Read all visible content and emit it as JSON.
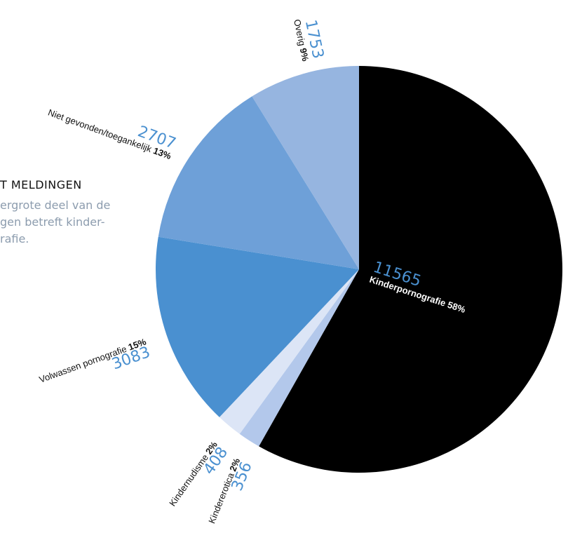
{
  "intro": {
    "title": "T MELDINGEN",
    "lines": [
      "ergrote deel van de",
      "gen betreft kinder-",
      "rafie."
    ]
  },
  "chart_data": {
    "type": "pie",
    "slices": [
      {
        "label": "Kinderpornografie",
        "count": "11565",
        "value": 11565,
        "percent": "58%",
        "color": "#000000"
      },
      {
        "label": "Kindererotica",
        "count": "356",
        "value": 356,
        "percent": "2%",
        "color": "#b3c8eb"
      },
      {
        "label": "Kindernudisme",
        "count": "408",
        "value": 408,
        "percent": "2%",
        "color": "#dce5f6"
      },
      {
        "label": "Volwassen pornografie",
        "count": "3083",
        "value": 3083,
        "percent": "15%",
        "color": "#4a90d0"
      },
      {
        "label": "Niet gevonden/toegankelijk",
        "count": "2707",
        "value": 2707,
        "percent": "13%",
        "color": "#6ea0d8"
      },
      {
        "label": "Overig",
        "count": "1753",
        "value": 1753,
        "percent": "9%",
        "color": "#96b5e0"
      }
    ]
  }
}
